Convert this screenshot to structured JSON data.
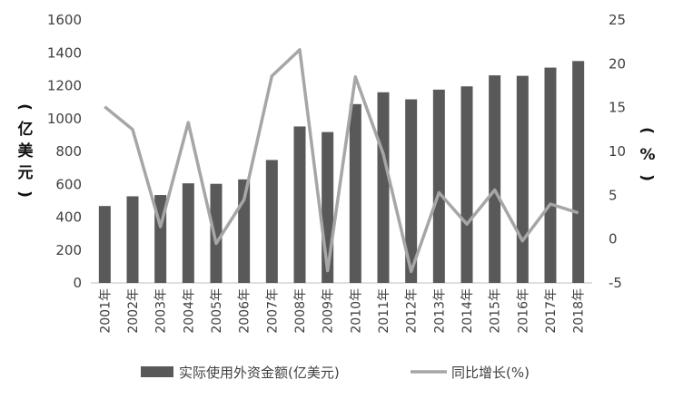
{
  "chart_data": {
    "type": "bar",
    "categories": [
      "2001年",
      "2002年",
      "2003年",
      "2004年",
      "2005年",
      "2006年",
      "2007年",
      "2008年",
      "2009年",
      "2010年",
      "2011年",
      "2012年",
      "2013年",
      "2014年",
      "2015年",
      "2016年",
      "2017年",
      "2018年"
    ],
    "series": [
      {
        "name": "实际使用外资金额(亿美元)",
        "type": "bar",
        "axis": "left",
        "color": "#595959",
        "values": [
          468,
          527,
          535,
          606,
          603,
          630,
          748,
          952,
          918,
          1088,
          1160,
          1117,
          1176,
          1196,
          1263,
          1260,
          1310,
          1350
        ]
      },
      {
        "name": "同比增长(%)",
        "type": "line",
        "axis": "right",
        "color": "#a6a6a6",
        "values": [
          15.1,
          12.5,
          1.4,
          13.3,
          -0.5,
          4.5,
          18.6,
          21.6,
          -3.6,
          18.5,
          9.7,
          -3.7,
          5.3,
          1.7,
          5.6,
          -0.2,
          4.0,
          3.0
        ]
      }
    ],
    "y_left": {
      "ylim": [
        0,
        1600
      ],
      "ticks": [
        "0",
        "200",
        "400",
        "600",
        "800",
        "1000",
        "1200",
        "1400",
        "1600"
      ]
    },
    "y_right": {
      "ylim": [
        -5,
        25
      ],
      "ticks": [
        "-5",
        "0",
        "5",
        "10",
        "15",
        "20",
        "25"
      ]
    },
    "ylabel_left": [
      "(",
      "亿",
      "美",
      "元",
      ")"
    ],
    "ylabel_right": [
      "(",
      "%",
      ")"
    ],
    "grid": false,
    "legend": "bottom"
  }
}
